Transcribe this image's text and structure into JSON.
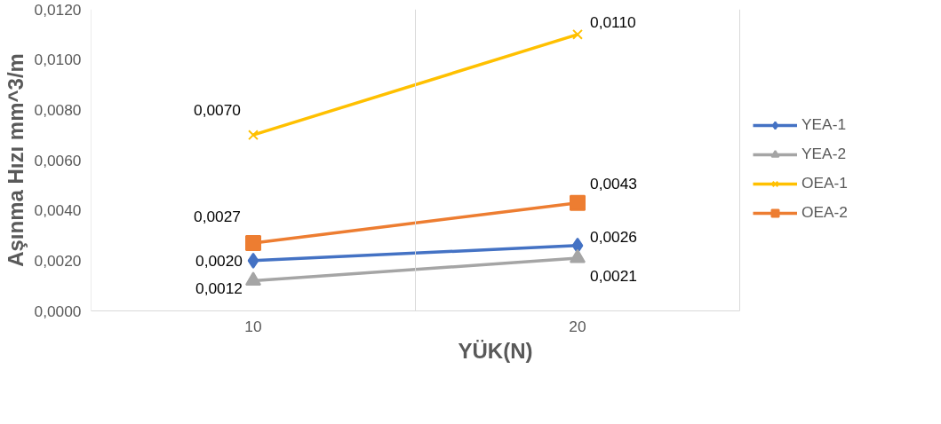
{
  "chart_data": {
    "type": "line",
    "xlabel": "YÜK(N)",
    "ylabel": "Aşınma Hızı mm^3/m",
    "categories": [
      "10",
      "20"
    ],
    "series": [
      {
        "name": "YEA-1",
        "color": "#4472c4",
        "marker": "diamond",
        "values": [
          0.002,
          0.0026
        ],
        "value_labels": [
          "0,0020",
          "0,0026"
        ]
      },
      {
        "name": "YEA-2",
        "color": "#a5a5a5",
        "marker": "triangle",
        "values": [
          0.0012,
          0.0021
        ],
        "value_labels": [
          "0,0012",
          "0,0021"
        ]
      },
      {
        "name": "OEA-1",
        "color": "#ffc000",
        "marker": "cross",
        "values": [
          0.007,
          0.011
        ],
        "value_labels": [
          "0,0070",
          "0,0110"
        ]
      },
      {
        "name": "OEA-2",
        "color": "#ed7d31",
        "marker": "square",
        "values": [
          0.0027,
          0.0043
        ],
        "value_labels": [
          "0,0027",
          "0,0043"
        ]
      }
    ],
    "ylim": [
      0,
      0.012
    ],
    "yticks": [
      {
        "value": 0,
        "label": "0,0000"
      },
      {
        "value": 0.002,
        "label": "0,0020"
      },
      {
        "value": 0.004,
        "label": "0,0040"
      },
      {
        "value": 0.006,
        "label": "0,0060"
      },
      {
        "value": 0.008,
        "label": "0,0080"
      },
      {
        "value": 0.01,
        "label": "0,0100"
      },
      {
        "value": 0.012,
        "label": "0,0120"
      }
    ],
    "grid": "x",
    "legend": "right",
    "line_style": "solid"
  }
}
